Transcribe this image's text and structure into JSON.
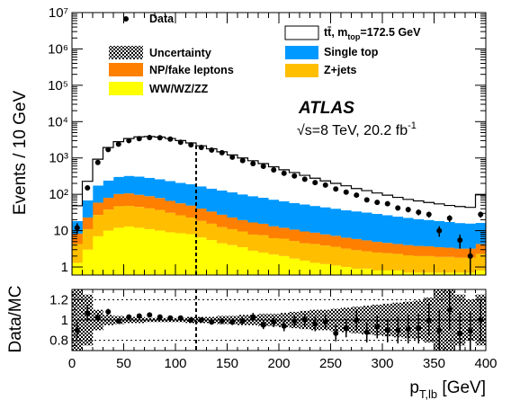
{
  "chart_data": [
    {
      "type": "bar",
      "ylabel": "Events / 10 GeV",
      "yscale": "log",
      "ylim": [
        0.6,
        10000000
      ],
      "xlim": [
        0,
        400
      ],
      "yticks": [
        "1",
        "10",
        "10²",
        "10³",
        "10⁴",
        "10⁵",
        "10⁶",
        "10⁷"
      ],
      "bin_edges": [
        0,
        10,
        20,
        30,
        40,
        50,
        60,
        70,
        80,
        90,
        100,
        110,
        120,
        130,
        140,
        150,
        160,
        170,
        180,
        190,
        200,
        210,
        220,
        230,
        240,
        250,
        260,
        270,
        280,
        290,
        300,
        310,
        320,
        330,
        340,
        350,
        360,
        370,
        380,
        390,
        400
      ],
      "annotations": {
        "experiment": "ATLAS",
        "energy_lumi_prefix": "√s=8 TeV, 20.2 fb",
        "energy_lumi_sup": "-1",
        "vline_x": 120
      },
      "legend": [
        {
          "key": "data",
          "label": "Data",
          "color": "#000000"
        },
        {
          "key": "ttbar",
          "label": "tt̄, m",
          "sub": "top",
          "label_tail": "=172.5 GeV",
          "color": "#ffffff"
        },
        {
          "key": "unc",
          "label": "Uncertainty",
          "color": "#000000"
        },
        {
          "key": "singletop",
          "label": "Single top",
          "color": "#0099ff"
        },
        {
          "key": "fake",
          "label": "NP/fake leptons",
          "color": "#ff7f00"
        },
        {
          "key": "zjets",
          "label": "Z+jets",
          "color": "#ffbf00"
        },
        {
          "key": "diboson",
          "label": "WW/WZ/ZZ",
          "color": "#ffff00"
        }
      ],
      "series": [
        {
          "name": "WW/WZ/ZZ",
          "values": [
            1.3,
            3,
            7,
            10,
            12,
            13,
            12,
            11,
            10,
            9,
            8.5,
            8,
            6.5,
            5.5,
            4.5,
            4,
            3.5,
            2.8,
            2.5,
            2.2,
            2,
            1.7,
            1.5,
            1.3,
            1.2,
            1.1,
            1,
            0.9,
            0.9,
            0.8,
            0.8,
            0.8,
            0.7,
            0.7,
            0.7,
            0.7,
            0.7,
            0.7,
            0.7,
            0.8
          ]
        },
        {
          "name": "Z+jets",
          "values": [
            3,
            8,
            20,
            28,
            35,
            35,
            33,
            30,
            27,
            22,
            18,
            15,
            12,
            10,
            8,
            7,
            6,
            5,
            5,
            4,
            4,
            3.5,
            3,
            3,
            2.7,
            2.5,
            2.2,
            2,
            1.8,
            1.7,
            1.6,
            1.5,
            1.4,
            1.3,
            1.3,
            1.2,
            1.2,
            1.1,
            1.1,
            1.5
          ]
        },
        {
          "name": "NP/fake leptons",
          "values": [
            4,
            12,
            32,
            42,
            55,
            58,
            52,
            48,
            42,
            35,
            30,
            26,
            22,
            18,
            15,
            12,
            10,
            9,
            8,
            7,
            6,
            5.5,
            5,
            4.5,
            4,
            3.6,
            3.2,
            3,
            2.7,
            2.4,
            2.2,
            2,
            1.9,
            1.8,
            1.7,
            1.6,
            1.5,
            1.4,
            1.4,
            2
          ]
        },
        {
          "name": "Single top",
          "values": [
            10,
            45,
            115,
            160,
            200,
            215,
            210,
            195,
            180,
            165,
            150,
            140,
            125,
            110,
            100,
            90,
            80,
            72,
            65,
            58,
            52,
            47,
            43,
            39,
            36,
            33,
            30,
            28,
            26,
            24,
            22,
            20,
            18.5,
            17,
            16,
            15,
            14,
            13,
            12.5,
            12
          ]
        },
        {
          "name": "tt̄, m_top=172.5 GeV",
          "values": [
            30,
            160,
            750,
            1700,
            2500,
            3100,
            3500,
            3600,
            3500,
            3200,
            2800,
            2400,
            2000,
            1650,
            1350,
            1100,
            900,
            750,
            620,
            500,
            410,
            340,
            280,
            230,
            190,
            160,
            135,
            110,
            95,
            80,
            68,
            58,
            50,
            45,
            40,
            36,
            32,
            30,
            28,
            80
          ]
        }
      ],
      "data_points": {
        "x": [
          5,
          15,
          25,
          35,
          45,
          55,
          65,
          75,
          85,
          95,
          105,
          115,
          125,
          135,
          145,
          155,
          165,
          175,
          185,
          195,
          205,
          215,
          225,
          235,
          245,
          255,
          265,
          275,
          285,
          295,
          305,
          315,
          325,
          335,
          345,
          355,
          365,
          375,
          385,
          395
        ],
        "y": [
          12,
          150,
          750,
          1700,
          2400,
          3000,
          3400,
          3650,
          3600,
          3300,
          2700,
          2300,
          1950,
          1650,
          1400,
          1050,
          850,
          700,
          590,
          470,
          380,
          320,
          260,
          210,
          180,
          140,
          115,
          95,
          70,
          60,
          55,
          42,
          38,
          32,
          28,
          10,
          22,
          5.5,
          2,
          28
        ],
        "yerr": [
          4,
          12,
          27,
          41,
          49,
          55,
          58,
          60,
          60,
          57,
          52,
          48,
          44,
          41,
          37,
          32,
          29,
          26,
          24,
          22,
          19,
          18,
          16,
          14,
          13,
          12,
          11,
          10,
          8.4,
          7.7,
          7.4,
          6.5,
          6.2,
          5.7,
          5.3,
          3.2,
          4.7,
          2.3,
          1.4,
          5.3
        ]
      }
    },
    {
      "type": "scatter",
      "ylabel": "Data/MC",
      "xlabel": "p",
      "xlabel_sub": "T,lb",
      "xlabel_unit": " [GeV]",
      "ylim": [
        0.7,
        1.3
      ],
      "xlim": [
        0,
        400
      ],
      "xticks": [
        "0",
        "50",
        "100",
        "150",
        "200",
        "250",
        "300",
        "350",
        "400"
      ],
      "yticks": [
        "0.8",
        "1",
        "1.2"
      ],
      "reference_lines": [
        0.8,
        1.0,
        1.2
      ],
      "uncertainty_band": [
        0.35,
        0.25,
        0.1,
        0.05,
        0.04,
        0.03,
        0.03,
        0.02,
        0.02,
        0.02,
        0.02,
        0.03,
        0.03,
        0.03,
        0.04,
        0.04,
        0.05,
        0.05,
        0.06,
        0.06,
        0.07,
        0.08,
        0.09,
        0.1,
        0.1,
        0.11,
        0.12,
        0.13,
        0.14,
        0.15,
        0.16,
        0.17,
        0.18,
        0.19,
        0.22,
        0.35,
        0.3,
        0.25,
        0.2,
        0.25
      ],
      "ratio_points": {
        "x": [
          5,
          15,
          25,
          35,
          45,
          55,
          65,
          75,
          85,
          95,
          105,
          115,
          125,
          135,
          145,
          155,
          165,
          175,
          185,
          195,
          205,
          215,
          225,
          235,
          245,
          255,
          265,
          275,
          285,
          295,
          305,
          315,
          325,
          335,
          345,
          355,
          365,
          375,
          385,
          395
        ],
        "y": [
          0.9,
          1.07,
          1.02,
          1.08,
          0.99,
          1.03,
          1.04,
          1.05,
          1.03,
          1.02,
          1.02,
          1.0,
          1.0,
          0.98,
          0.99,
          0.98,
          0.99,
          1.03,
          0.95,
          0.98,
          0.94,
          0.99,
          1.0,
          0.96,
          0.98,
          0.87,
          0.92,
          1.0,
          0.88,
          0.93,
          0.9,
          0.9,
          0.91,
          0.92,
          1.0,
          0.9,
          1.1,
          0.87,
          0.89,
          1.0
        ],
        "yerr": [
          0.08,
          0.08,
          0.04,
          0.03,
          0.02,
          0.02,
          0.02,
          0.02,
          0.02,
          0.02,
          0.02,
          0.02,
          0.02,
          0.02,
          0.03,
          0.03,
          0.03,
          0.04,
          0.04,
          0.05,
          0.05,
          0.06,
          0.06,
          0.07,
          0.07,
          0.08,
          0.09,
          0.1,
          0.1,
          0.11,
          0.12,
          0.13,
          0.14,
          0.15,
          0.16,
          0.2,
          0.2,
          0.2,
          0.2,
          0.2
        ]
      }
    }
  ]
}
